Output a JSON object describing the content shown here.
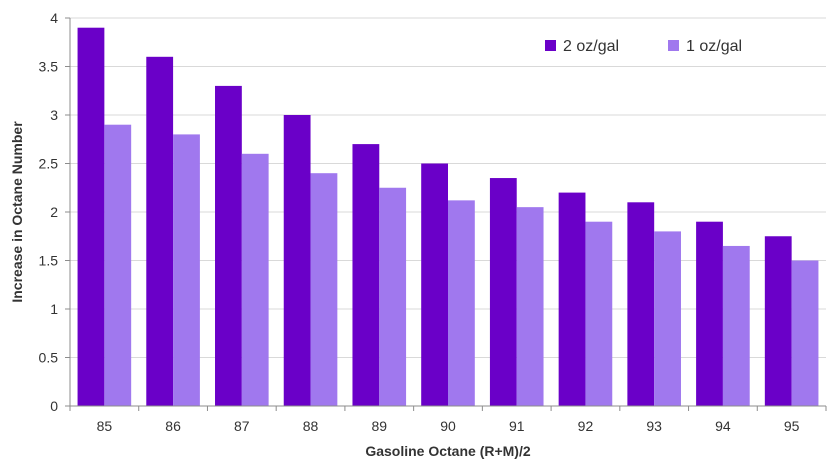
{
  "chart_data": {
    "type": "bar",
    "title": "",
    "xlabel": "Gasoline Octane (R+M)/2",
    "ylabel": "Increase in Octane Number",
    "categories": [
      "85",
      "86",
      "87",
      "88",
      "89",
      "90",
      "91",
      "92",
      "93",
      "94",
      "95"
    ],
    "series": [
      {
        "name": "2 oz/gal",
        "color": "#6a00c8",
        "values": [
          3.9,
          3.6,
          3.3,
          3.0,
          2.7,
          2.5,
          2.35,
          2.2,
          2.1,
          1.9,
          1.75
        ]
      },
      {
        "name": "1 oz/gal",
        "color": "#a078ee",
        "values": [
          2.9,
          2.8,
          2.6,
          2.4,
          2.25,
          2.12,
          2.05,
          1.9,
          1.8,
          1.65,
          1.5
        ]
      }
    ],
    "ylim": [
      0,
      4
    ],
    "yticks": [
      0,
      0.5,
      1,
      1.5,
      2,
      2.5,
      3,
      3.5,
      4
    ],
    "ytick_labels": [
      "0",
      "0.5",
      "1",
      "1.5",
      "2",
      "2.5",
      "3",
      "3.5",
      "4"
    ],
    "grid": true,
    "legend_position": "top-right"
  }
}
